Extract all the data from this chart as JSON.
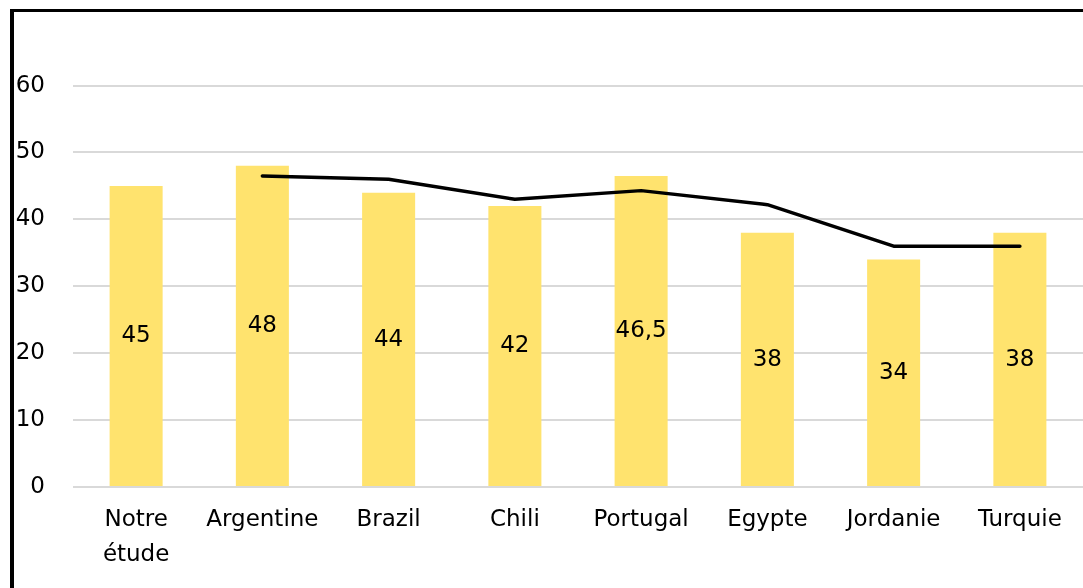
{
  "chart_data": {
    "type": "bar",
    "categories": [
      "Notre étude",
      "Argentine",
      "Brazil",
      "Chili",
      "Portugal",
      "Egypte",
      "Jordanie",
      "Turquie"
    ],
    "series": [
      {
        "color": "#ffe36e",
        "values": [
          45,
          48,
          44,
          42,
          46.5,
          38,
          34,
          38
        ],
        "value_labels": [
          "45",
          "48",
          "44",
          "42",
          "46,5",
          "38",
          "34",
          "38"
        ]
      },
      {
        "type": "line",
        "color": "#000000",
        "values": [
          null,
          46.5,
          46,
          43,
          44.3,
          42.2,
          36,
          36
        ]
      }
    ],
    "ylim": [
      0,
      71
    ],
    "yticks": [
      0,
      10,
      20,
      30,
      40,
      50,
      60
    ],
    "grid": "y",
    "legend": false,
    "marker": "none"
  }
}
